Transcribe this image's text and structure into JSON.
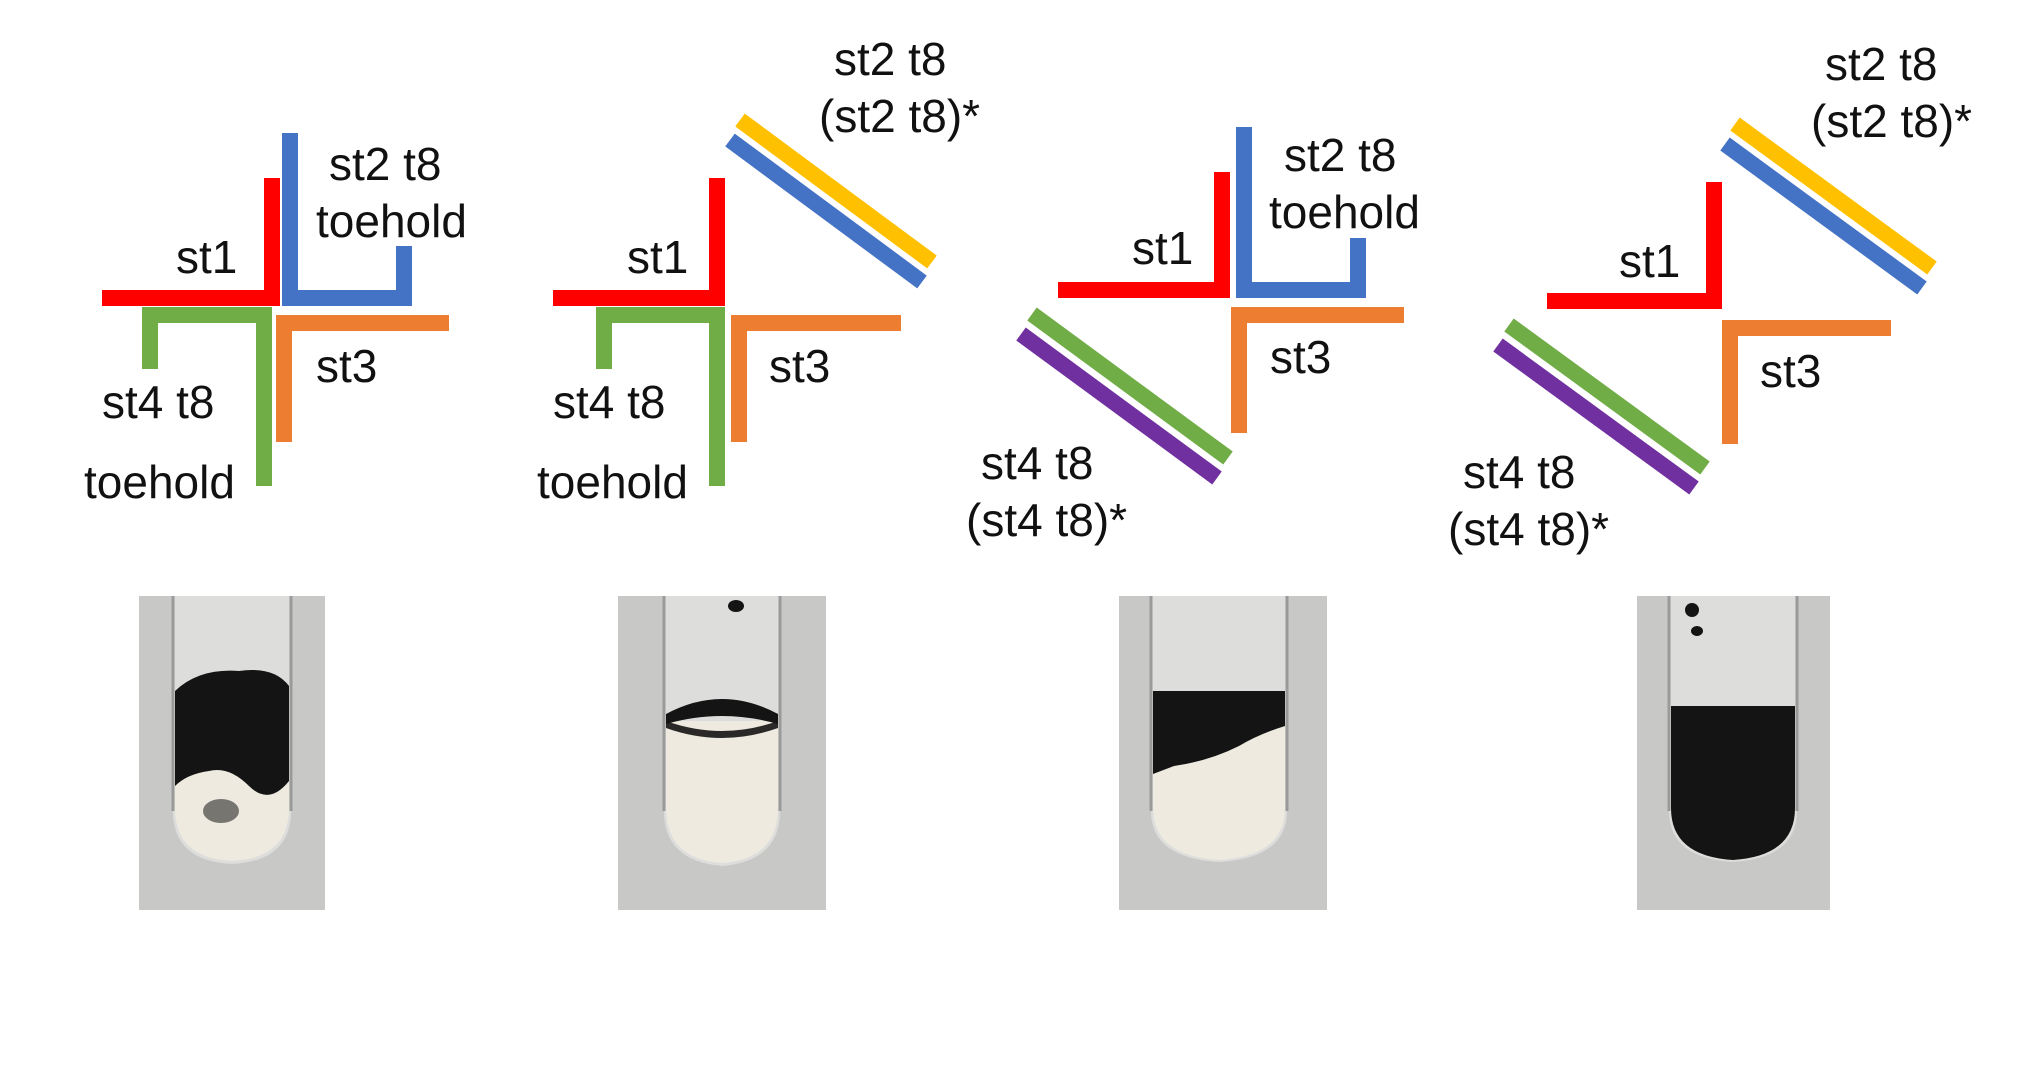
{
  "colors": {
    "st1": "#ff0000",
    "st2": "#4472c4",
    "st3": "#ed7d31",
    "st4": "#70ad47",
    "st2_complement": "#ffc000",
    "st4_complement": "#7030a0",
    "tube_background": "#c8c8c6",
    "glass": "#eeeeee",
    "dark_gel": "#141414",
    "light_liquid": "#eeeae0"
  },
  "panels": [
    {
      "id": "panel-1",
      "labels": {
        "st1": "st1",
        "st2_line1": "st2 t8",
        "st2_line2": "toehold",
        "st3": "st3",
        "st4_line1": "st4 t8",
        "st4_line2": "toehold"
      },
      "tube": {
        "contents": "dark gel with light liquid"
      }
    },
    {
      "id": "panel-2",
      "labels": {
        "st1": "st1",
        "st2_line1": "st2 t8",
        "st2_line2": "(st2 t8)*",
        "st3": "st3",
        "st4_line1": "st4 t8",
        "st4_line2": "toehold"
      },
      "tube": {
        "contents": "light liquid with thin dark band"
      }
    },
    {
      "id": "panel-3",
      "labels": {
        "st1": "st1",
        "st2_line1": "st2 t8",
        "st2_line2": "toehold",
        "st3": "st3",
        "st4_line1": "st4 t8",
        "st4_line2": "(st4 t8)*"
      },
      "tube": {
        "contents": "light liquid with dark band"
      }
    },
    {
      "id": "panel-4",
      "labels": {
        "st1": "st1",
        "st2_line1": "st2 t8",
        "st2_line2": "(st2 t8)*",
        "st3": "st3",
        "st4_line1": "st4 t8",
        "st4_line2": "(st4 t8)*"
      },
      "tube": {
        "contents": "fully dark gel"
      }
    }
  ]
}
